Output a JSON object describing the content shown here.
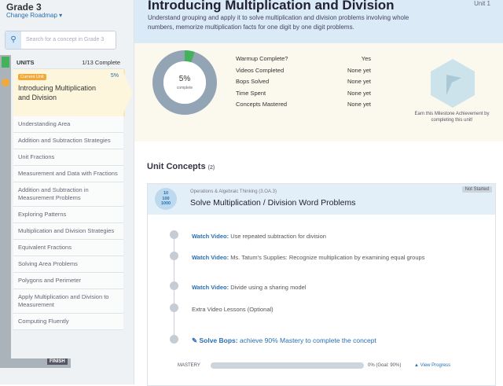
{
  "sidebar": {
    "grade": "Grade 3",
    "change_roadmap": "Change Roadmap ▾",
    "search_placeholder": "Search for a concept in Grade 3",
    "units_label": "UNITS",
    "complete": "1/13 Complete",
    "current": {
      "badge": "Current Unit",
      "title": "Introducing Multiplication and Division",
      "percent": "5%"
    },
    "items": [
      "Understanding Area",
      "Addition and Subtraction Strategies",
      "Unit Fractions",
      "Measurement and Data with Fractions",
      "Addition and Subtraction in Measurement Problems",
      "Exploring Patterns",
      "Multiplication and Division Strategies",
      "Equivalent Fractions",
      "Solving Area Problems",
      "Polygons and Perimeter",
      "Apply Multiplication and Division to Measurement",
      "Computing Fluently"
    ],
    "finish": "FINISH"
  },
  "unit": {
    "title": "Introducing Multiplication and Division",
    "number": "Unit 1",
    "description": "Understand grouping and apply it to solve multiplication and division problems involving whole numbers, memorize multiplication facts for one digit by one digit problems."
  },
  "progress": {
    "value": 5,
    "label": "5%",
    "caption": "complete"
  },
  "stats": {
    "rows": [
      [
        "Warmup Complete?",
        "Yes"
      ],
      [
        "Videos Completed",
        "None yet"
      ],
      [
        "Bops Solved",
        "None yet"
      ],
      [
        "Time Spent",
        "None yet"
      ],
      [
        "Concepts Mastered",
        "None yet"
      ]
    ]
  },
  "milestone": "Earn this Milestone Achievement by completing this unit!",
  "concepts": {
    "heading": "Unit Concepts",
    "count": "(2)",
    "card": {
      "icon": [
        "10",
        "100",
        "1000"
      ],
      "category": "Operations & Algebraic Thinking (3.OA.3)",
      "title": "Solve Multiplication / Division Word Problems",
      "status": "Not Started",
      "steps": [
        {
          "label": "Watch Video:",
          "text": "Use repeated subtraction for division"
        },
        {
          "label": "Watch Video:",
          "text": "Ms. Tatum's Supplies: Recognize multiplication by examining equal groups"
        },
        {
          "label": "Watch Video:",
          "text": "Divide using a sharing model"
        },
        {
          "label": "Extra Video Lessons",
          "text": "(Optional)"
        },
        {
          "label": "✎ Solve Bops:",
          "text": "achieve 90% Mastery to complete the concept"
        }
      ],
      "mastery": {
        "label": "MASTERY",
        "percent": "0% (Goal: 90%)",
        "view": "View Progress"
      }
    }
  }
}
